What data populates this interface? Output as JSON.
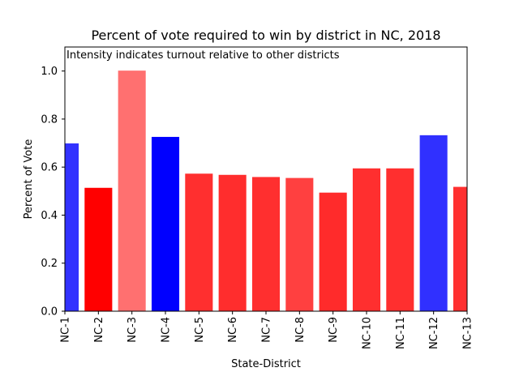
{
  "chart_data": {
    "type": "bar",
    "title": "Percent of vote required to win by district in NC, 2018",
    "annotation": "Intensity indicates turnout relative to other districts",
    "xlabel": "State-District",
    "ylabel": "Percent of Vote",
    "ylim": [
      0,
      1.1
    ],
    "yticks": [
      "0.0",
      "0.2",
      "0.4",
      "0.6",
      "0.8",
      "1.0"
    ],
    "categories": [
      "NC-1",
      "NC-2",
      "NC-3",
      "NC-4",
      "NC-5",
      "NC-6",
      "NC-7",
      "NC-8",
      "NC-9",
      "NC-10",
      "NC-11",
      "NC-12",
      "NC-13"
    ],
    "values": [
      0.697,
      0.512,
      1.0,
      0.724,
      0.571,
      0.566,
      0.557,
      0.553,
      0.492,
      0.593,
      0.593,
      0.731,
      0.516
    ],
    "bar_colors": [
      "#3232ff",
      "#ff0000",
      "#ff7070",
      "#0000ff",
      "#ff2f2f",
      "#ff2d2d",
      "#ff2f2f",
      "#ff4040",
      "#ff2b2b",
      "#ff2f2f",
      "#ff2f2f",
      "#3030ff",
      "#ff3030"
    ],
    "grid": false,
    "legend": "none"
  }
}
